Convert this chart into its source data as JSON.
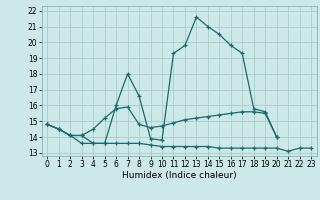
{
  "xlabel": "Humidex (Indice chaleur)",
  "xlim": [
    -0.5,
    23.5
  ],
  "ylim": [
    12.8,
    22.3
  ],
  "yticks": [
    13,
    14,
    15,
    16,
    17,
    18,
    19,
    20,
    21,
    22
  ],
  "xticks": [
    0,
    1,
    2,
    3,
    4,
    5,
    6,
    7,
    8,
    9,
    10,
    11,
    12,
    13,
    14,
    15,
    16,
    17,
    18,
    19,
    20,
    21,
    22,
    23
  ],
  "bg_color": "#cde8e8",
  "grid_color": "#aacccc",
  "line_color": "#1a6b6b",
  "line1_y": [
    14.8,
    14.5,
    14.1,
    14.1,
    13.6,
    13.6,
    16.0,
    18.0,
    16.6,
    13.9,
    13.8,
    19.3,
    19.8,
    21.6,
    21.0,
    20.5,
    19.8,
    19.3,
    15.8,
    15.6,
    14.0,
    null,
    null,
    null
  ],
  "line2_y": [
    14.8,
    14.5,
    14.1,
    14.1,
    14.5,
    15.2,
    15.8,
    15.9,
    14.8,
    14.6,
    14.7,
    14.9,
    15.1,
    15.2,
    15.3,
    15.4,
    15.5,
    15.6,
    15.6,
    15.5,
    14.0,
    null,
    null,
    null
  ],
  "line3_y": [
    14.8,
    14.5,
    14.1,
    13.6,
    13.6,
    13.6,
    13.6,
    13.6,
    13.6,
    13.5,
    13.4,
    13.4,
    13.4,
    13.4,
    13.4,
    13.3,
    13.3,
    13.3,
    13.3,
    13.3,
    13.3,
    13.1,
    13.3,
    13.3
  ]
}
